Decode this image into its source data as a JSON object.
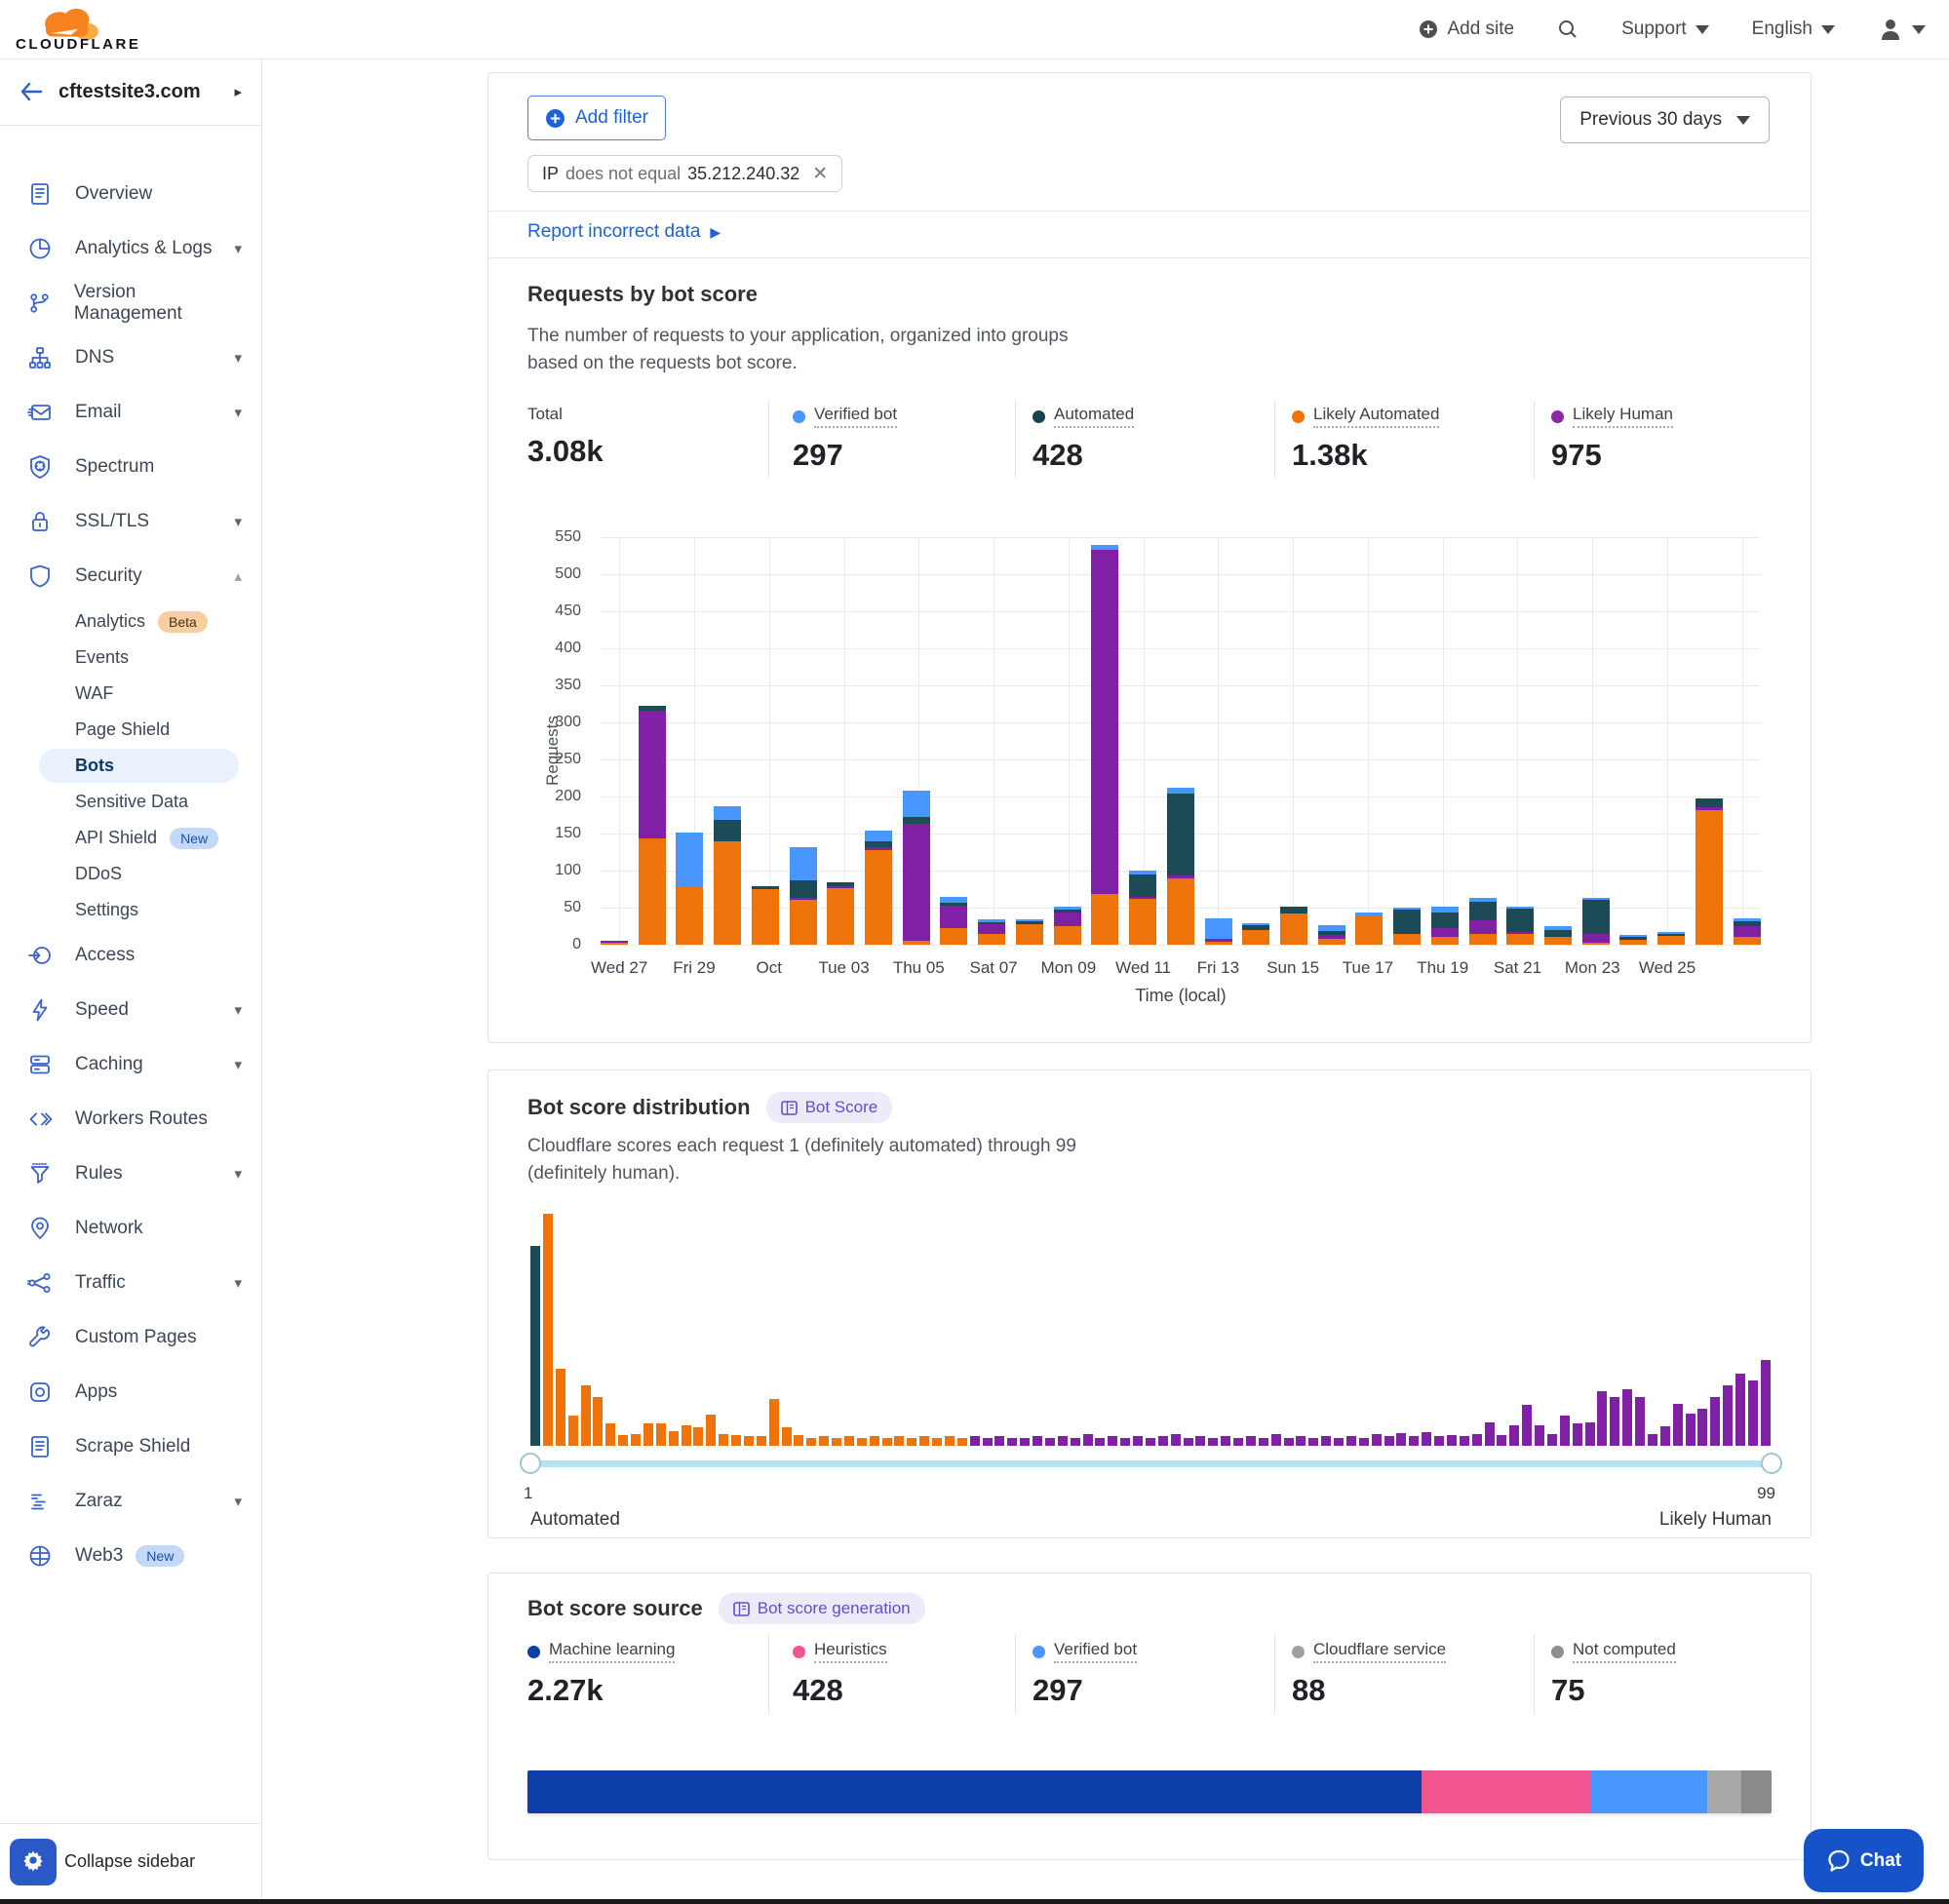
{
  "topbar": {
    "brand": "CLOUDFLARE",
    "add_site": "Add site",
    "support": "Support",
    "language": "English"
  },
  "sidebar": {
    "site": "cftestsite3.com",
    "items": [
      {
        "label": "Overview",
        "icon": "overview"
      },
      {
        "label": "Analytics & Logs",
        "icon": "analytics",
        "caret": "down"
      },
      {
        "label": "Version Management",
        "icon": "version"
      },
      {
        "label": "DNS",
        "icon": "dns",
        "caret": "down"
      },
      {
        "label": "Email",
        "icon": "email",
        "caret": "down"
      },
      {
        "label": "Spectrum",
        "icon": "spectrum"
      },
      {
        "label": "SSL/TLS",
        "icon": "ssl",
        "caret": "down"
      },
      {
        "label": "Security",
        "icon": "security",
        "caret": "up",
        "children": [
          {
            "label": "Analytics",
            "badge": "Beta",
            "badge_type": "beta"
          },
          {
            "label": "Events"
          },
          {
            "label": "WAF"
          },
          {
            "label": "Page Shield"
          },
          {
            "label": "Bots",
            "selected": true
          },
          {
            "label": "Sensitive Data"
          },
          {
            "label": "API Shield",
            "badge": "New",
            "badge_type": "new"
          },
          {
            "label": "DDoS"
          },
          {
            "label": "Settings"
          }
        ]
      },
      {
        "label": "Access",
        "icon": "access"
      },
      {
        "label": "Speed",
        "icon": "speed",
        "caret": "down"
      },
      {
        "label": "Caching",
        "icon": "caching",
        "caret": "down"
      },
      {
        "label": "Workers Routes",
        "icon": "workers"
      },
      {
        "label": "Rules",
        "icon": "rules",
        "caret": "down"
      },
      {
        "label": "Network",
        "icon": "network"
      },
      {
        "label": "Traffic",
        "icon": "traffic",
        "caret": "down"
      },
      {
        "label": "Custom Pages",
        "icon": "custom-pages"
      },
      {
        "label": "Apps",
        "icon": "apps"
      },
      {
        "label": "Scrape Shield",
        "icon": "scrape-shield"
      },
      {
        "label": "Zaraz",
        "icon": "zaraz",
        "caret": "down"
      },
      {
        "label": "Web3",
        "icon": "web3",
        "badge": "New",
        "badge_type": "new"
      }
    ],
    "collapse_label": "Collapse sidebar"
  },
  "filter_bar": {
    "add_filter": "Add filter",
    "chip_field": "IP",
    "chip_operator": "does not equal",
    "chip_value": "35.212.240.32",
    "date_range": "Previous 30 days"
  },
  "report_link": "Report incorrect data",
  "requests_card": {
    "title": "Requests by bot score",
    "description": "The number of requests to your application, organized into groups based on the requests bot score.",
    "stats": [
      {
        "label": "Total",
        "value": "3.08k",
        "color": null
      },
      {
        "label": "Verified bot",
        "value": "297",
        "color": "#4896FF"
      },
      {
        "label": "Automated",
        "value": "428",
        "color": "#17434E"
      },
      {
        "label": "Likely Automated",
        "value": "1.38k",
        "color": "#EE730A"
      },
      {
        "label": "Likely Human",
        "value": "975",
        "color": "#8B27A8"
      }
    ],
    "chart_data": {
      "type": "stacked-bar",
      "ylabel": "Requests",
      "xlabel": "Time (local)",
      "ylim": [
        0,
        550
      ],
      "y_tick_step": 50,
      "x_tick_labels": [
        "Wed 27",
        "Fri 29",
        "Oct",
        "Tue 03",
        "Thu 05",
        "Sat 07",
        "Mon 09",
        "Wed 11",
        "Fri 13",
        "Sun 15",
        "Tue 17",
        "Thu 19",
        "Sat 21",
        "Mon 23",
        "Wed 25"
      ],
      "series_order": [
        "likely_automated",
        "likely_human",
        "automated",
        "verified_bot"
      ],
      "series_colors": {
        "likely_automated": "#EE730A",
        "likely_human": "#8021A5",
        "automated": "#1C4B57",
        "verified_bot": "#4896FF"
      },
      "bars": [
        [
          3,
          2,
          0,
          0
        ],
        [
          143,
          173,
          6,
          0
        ],
        [
          78,
          0,
          0,
          73
        ],
        [
          140,
          0,
          28,
          19
        ],
        [
          75,
          0,
          4,
          0
        ],
        [
          60,
          3,
          24,
          44
        ],
        [
          76,
          2,
          5,
          0
        ],
        [
          128,
          4,
          8,
          14
        ],
        [
          5,
          158,
          9,
          36
        ],
        [
          22,
          30,
          5,
          8
        ],
        [
          15,
          13,
          2,
          3
        ],
        [
          28,
          0,
          4,
          2
        ],
        [
          25,
          18,
          4,
          5
        ],
        [
          68,
          465,
          0,
          7
        ],
        [
          62,
          3,
          30,
          5
        ],
        [
          90,
          4,
          110,
          8
        ],
        [
          4,
          4,
          0,
          27
        ],
        [
          20,
          0,
          6,
          2
        ],
        [
          42,
          0,
          10,
          0
        ],
        [
          8,
          5,
          5,
          8
        ],
        [
          38,
          0,
          0,
          5
        ],
        [
          15,
          0,
          33,
          2
        ],
        [
          10,
          13,
          20,
          8
        ],
        [
          15,
          18,
          25,
          5
        ],
        [
          15,
          2,
          31,
          2
        ],
        [
          10,
          0,
          10,
          5
        ],
        [
          3,
          12,
          45,
          2
        ],
        [
          6,
          0,
          5,
          2
        ],
        [
          12,
          0,
          3,
          2
        ],
        [
          182,
          4,
          12,
          0
        ],
        [
          10,
          15,
          7,
          3
        ]
      ]
    }
  },
  "distribution_card": {
    "title": "Bot score distribution",
    "badge": "Bot Score",
    "description": "Cloudflare scores each request 1 (definitely automated) through 99 (definitely human).",
    "slider_min": "1",
    "slider_max": "99",
    "left_caption": "Automated",
    "right_caption": "Likely Human",
    "chart_data": {
      "type": "bar",
      "x_range": [
        1,
        99
      ],
      "colors": {
        "score_1": "#1C4B57",
        "automated_range": "#EE730A",
        "human_range": "#8021A5"
      },
      "automated_color_through_score": 35,
      "values": [
        0.86,
        1,
        0.33,
        0.13,
        0.26,
        0.21,
        0.095,
        0.045,
        0.05,
        0.095,
        0.095,
        0.065,
        0.09,
        0.08,
        0.135,
        0.05,
        0.045,
        0.04,
        0.04,
        0.2,
        0.08,
        0.045,
        0.035,
        0.04,
        0.035,
        0.04,
        0.035,
        0.04,
        0.035,
        0.04,
        0.035,
        0.04,
        0.035,
        0.04,
        0.035,
        0.04,
        0.035,
        0.04,
        0.035,
        0.035,
        0.04,
        0.035,
        0.04,
        0.035,
        0.05,
        0.035,
        0.04,
        0.035,
        0.04,
        0.035,
        0.04,
        0.05,
        0.035,
        0.04,
        0.035,
        0.04,
        0.035,
        0.04,
        0.035,
        0.05,
        0.035,
        0.04,
        0.035,
        0.04,
        0.035,
        0.04,
        0.035,
        0.05,
        0.04,
        0.055,
        0.04,
        0.06,
        0.04,
        0.045,
        0.04,
        0.05,
        0.1,
        0.045,
        0.09,
        0.175,
        0.09,
        0.05,
        0.13,
        0.095,
        0.1,
        0.235,
        0.21,
        0.245,
        0.21,
        0.05,
        0.085,
        0.18,
        0.14,
        0.16,
        0.21,
        0.26,
        0.31,
        0.28,
        0.37
      ]
    }
  },
  "source_card": {
    "title": "Bot score source",
    "badge": "Bot score generation",
    "stats": [
      {
        "label": "Machine learning",
        "value": "2.27k",
        "color": "#0E3EA8"
      },
      {
        "label": "Heuristics",
        "value": "428",
        "color": "#F0558F"
      },
      {
        "label": "Verified bot",
        "value": "297",
        "color": "#4896FF"
      },
      {
        "label": "Cloudflare service",
        "value": "88",
        "color": "#A0A0A0"
      },
      {
        "label": "Not computed",
        "value": "75",
        "color": "#8E8E8E"
      }
    ],
    "chart_data": {
      "type": "stacked-bar-horizontal",
      "segments": [
        {
          "label": "Machine learning",
          "pct": 71.9,
          "color": "#0E3EA8"
        },
        {
          "label": "Heuristics",
          "pct": 13.5,
          "color": "#F0558F"
        },
        {
          "label": "Verified bot",
          "pct": 9.4,
          "color": "#4896FF"
        },
        {
          "label": "Cloudflare service",
          "pct": 2.8,
          "color": "#A8A8A8"
        },
        {
          "label": "Not computed",
          "pct": 2.4,
          "color": "#8A8A8A"
        }
      ]
    }
  },
  "chat_label": "Chat"
}
